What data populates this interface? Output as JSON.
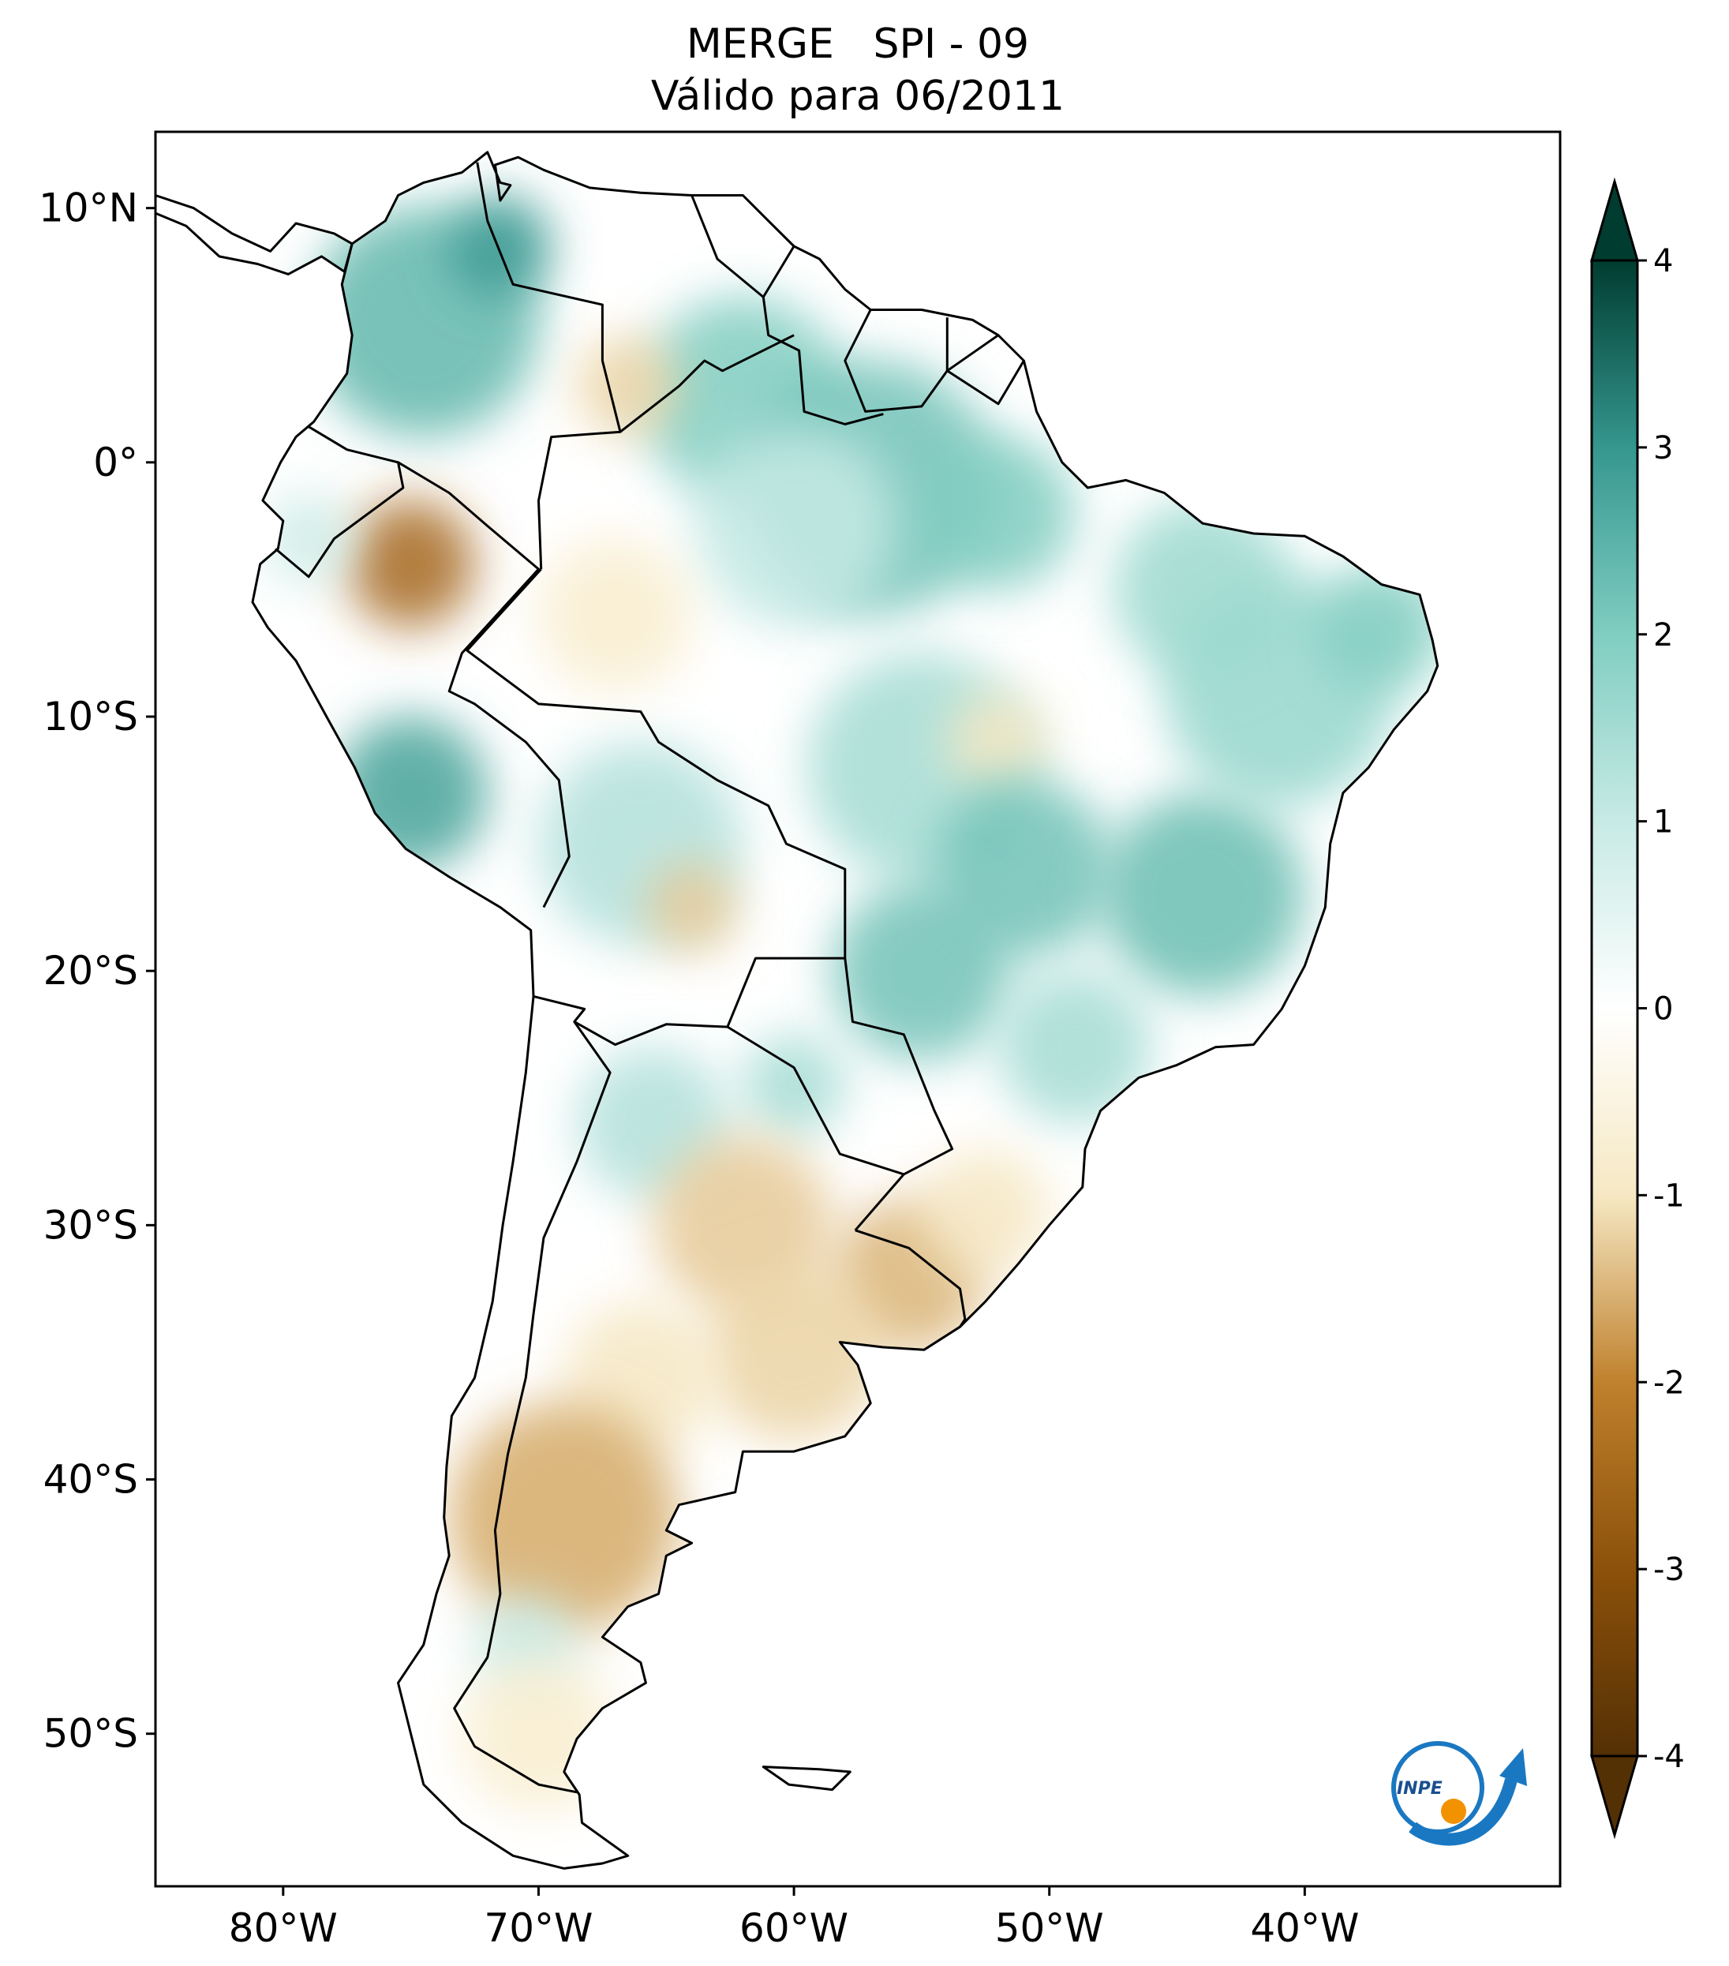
{
  "title": {
    "line1": "MERGE   SPI - 09",
    "line2": "Válido para 06/2011"
  },
  "map": {
    "lon_range": [
      -85,
      -30
    ],
    "lat_range": [
      -56,
      13
    ],
    "lon_ticks": [
      {
        "value": -80,
        "label": "80°W"
      },
      {
        "value": -70,
        "label": "70°W"
      },
      {
        "value": -60,
        "label": "60°W"
      },
      {
        "value": -50,
        "label": "50°W"
      },
      {
        "value": -40,
        "label": "40°W"
      }
    ],
    "lat_ticks": [
      {
        "value": 10,
        "label": "10°N"
      },
      {
        "value": 0,
        "label": "0°"
      },
      {
        "value": -10,
        "label": "10°S"
      },
      {
        "value": -20,
        "label": "20°S"
      },
      {
        "value": -30,
        "label": "30°S"
      },
      {
        "value": -40,
        "label": "40°S"
      },
      {
        "value": -50,
        "label": "50°S"
      }
    ],
    "anomalies": [
      {
        "lon": -74.5,
        "lat": 5.5,
        "r": 4.5,
        "spi": 2.4
      },
      {
        "lon": -71.5,
        "lat": 8.5,
        "r": 2.0,
        "spi": 3.0
      },
      {
        "lon": -62.0,
        "lat": 2.5,
        "r": 4.0,
        "spi": 2.0
      },
      {
        "lon": -57.0,
        "lat": -1.0,
        "r": 5.0,
        "spi": 2.2
      },
      {
        "lon": -52.0,
        "lat": -2.0,
        "r": 3.0,
        "spi": 2.0
      },
      {
        "lon": -60.0,
        "lat": -2.5,
        "r": 4.0,
        "spi": 1.0
      },
      {
        "lon": -75.0,
        "lat": -4.0,
        "r": 2.5,
        "spi": -2.5
      },
      {
        "lon": -66.5,
        "lat": 3.0,
        "r": 2.0,
        "spi": -1.2
      },
      {
        "lon": -67.0,
        "lat": -6.0,
        "r": 3.0,
        "spi": -0.8
      },
      {
        "lon": -75.0,
        "lat": -13.0,
        "r": 3.0,
        "spi": 2.8
      },
      {
        "lon": -66.0,
        "lat": -15.0,
        "r": 4.0,
        "spi": 1.3
      },
      {
        "lon": -64.0,
        "lat": -17.5,
        "r": 1.8,
        "spi": -1.3
      },
      {
        "lon": -55.0,
        "lat": -12.0,
        "r": 4.5,
        "spi": 1.5
      },
      {
        "lon": -52.0,
        "lat": -11.0,
        "r": 2.0,
        "spi": -1.0
      },
      {
        "lon": -51.0,
        "lat": -16.0,
        "r": 3.5,
        "spi": 2.2
      },
      {
        "lon": -55.0,
        "lat": -20.0,
        "r": 3.5,
        "spi": 2.2
      },
      {
        "lon": -44.0,
        "lat": -17.0,
        "r": 4.0,
        "spi": 2.3
      },
      {
        "lon": -41.0,
        "lat": -9.0,
        "r": 4.5,
        "spi": 1.7
      },
      {
        "lon": -44.0,
        "lat": -5.0,
        "r": 3.5,
        "spi": 1.6
      },
      {
        "lon": -37.0,
        "lat": -6.5,
        "r": 2.5,
        "spi": 2.0
      },
      {
        "lon": -49.0,
        "lat": -23.0,
        "r": 3.0,
        "spi": 1.5
      },
      {
        "lon": -60.0,
        "lat": -24.5,
        "r": 2.0,
        "spi": 1.5
      },
      {
        "lon": -65.5,
        "lat": -26.0,
        "r": 3.0,
        "spi": 1.3
      },
      {
        "lon": -62.0,
        "lat": -30.0,
        "r": 3.5,
        "spi": -1.3
      },
      {
        "lon": -55.5,
        "lat": -32.0,
        "r": 3.0,
        "spi": -1.5
      },
      {
        "lon": -52.5,
        "lat": -29.5,
        "r": 2.5,
        "spi": -1.0
      },
      {
        "lon": -60.0,
        "lat": -35.0,
        "r": 3.5,
        "spi": -1.2
      },
      {
        "lon": -66.0,
        "lat": -36.0,
        "r": 3.0,
        "spi": -1.0
      },
      {
        "lon": -69.0,
        "lat": -41.5,
        "r": 4.5,
        "spi": -1.6
      },
      {
        "lon": -70.5,
        "lat": -46.5,
        "r": 2.0,
        "spi": 1.0
      },
      {
        "lon": -70.0,
        "lat": -50.0,
        "r": 3.0,
        "spi": -0.8
      },
      {
        "lon": -79.0,
        "lat": -3.0,
        "r": 1.8,
        "spi": 0.9
      }
    ]
  },
  "colorbar": {
    "min": -4,
    "max": 4,
    "ticks": [
      {
        "value": 4,
        "label": "4"
      },
      {
        "value": 3,
        "label": "3"
      },
      {
        "value": 2,
        "label": "2"
      },
      {
        "value": 1,
        "label": "1"
      },
      {
        "value": 0,
        "label": "0"
      },
      {
        "value": -1,
        "label": "-1"
      },
      {
        "value": -2,
        "label": "-2"
      },
      {
        "value": -3,
        "label": "-3"
      },
      {
        "value": -4,
        "label": "-4"
      }
    ],
    "stops": [
      {
        "value": -4,
        "color": "#543005"
      },
      {
        "value": -3,
        "color": "#8c510a"
      },
      {
        "value": -2,
        "color": "#bf812d"
      },
      {
        "value": -1,
        "color": "#f6e8c3"
      },
      {
        "value": 0,
        "color": "#ffffff"
      },
      {
        "value": 1,
        "color": "#c7eae5"
      },
      {
        "value": 2,
        "color": "#80cdc1"
      },
      {
        "value": 3,
        "color": "#35978f"
      },
      {
        "value": 4,
        "color": "#003c30"
      }
    ]
  },
  "logo": {
    "text": "INPE"
  }
}
